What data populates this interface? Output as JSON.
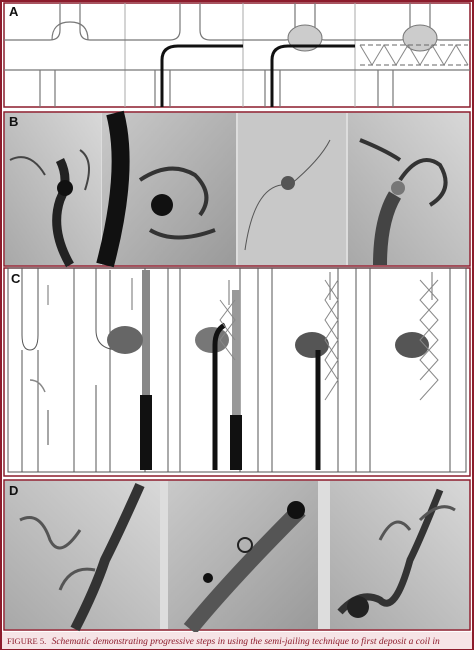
{
  "panels": [
    {
      "label": "A"
    },
    {
      "label": "B"
    },
    {
      "label": "C"
    },
    {
      "label": "D"
    }
  ],
  "caption": {
    "label": "FIGURE 5.",
    "text": "Schematic demonstrating progressive steps in using the semi-jailing technique to first deposit a coil in"
  }
}
